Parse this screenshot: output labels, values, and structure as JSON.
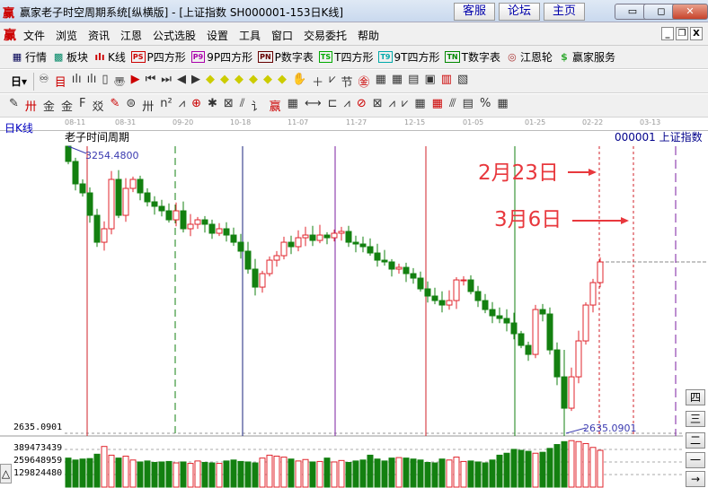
{
  "window": {
    "title": "赢家老子时空周期系统[纵横版] - [上证指数  SH000001-153日K线]",
    "logo": "赢",
    "buttons": [
      "客服",
      "论坛",
      "主页"
    ],
    "controls": [
      "minimize",
      "maximize",
      "close"
    ]
  },
  "menu": {
    "logo": "赢",
    "items": [
      "文件",
      "浏览",
      "资讯",
      "江恩",
      "公式选股",
      "设置",
      "工具",
      "窗口",
      "交易委托",
      "帮助"
    ]
  },
  "toolbar1": [
    {
      "icon": "quote-table-icon",
      "glyph": "▦",
      "label": "行情"
    },
    {
      "icon": "sector-icon",
      "glyph": "▩",
      "label": "板块"
    },
    {
      "icon": "kline-icon",
      "glyph": "ılı",
      "label": "K线"
    },
    {
      "icon": "ps-icon",
      "glyph": "PS",
      "label": "P四方形"
    },
    {
      "icon": "p9-icon",
      "glyph": "P9",
      "label": "9P四方形"
    },
    {
      "icon": "pn-icon",
      "glyph": "PN",
      "label": "P数字表"
    },
    {
      "icon": "ts-icon",
      "glyph": "TS",
      "label": "T四方形"
    },
    {
      "icon": "t9-icon",
      "glyph": "T9",
      "label": "9T四方形"
    },
    {
      "icon": "tn-icon",
      "glyph": "TN",
      "label": "T数字表"
    },
    {
      "icon": "gann-wheel-icon",
      "glyph": "◎",
      "label": "江恩轮"
    },
    {
      "icon": "dollar-icon",
      "glyph": "$",
      "label": "赢家服务"
    }
  ],
  "toolbar2_first": "日",
  "chart": {
    "period_label": "日K线",
    "indicator_title": "老子时间周期",
    "symbol": "000001  上证指数",
    "high_label": "3254.4800",
    "low_label": "2635.0901",
    "axis_low": "2635.0901",
    "vol_labels": [
      "389473439",
      "259648959",
      "129824480"
    ],
    "dates": [
      "08-11",
      "08-31",
      "09-20",
      "10-18",
      "11-07",
      "11-27",
      "12-15",
      "01-05",
      "01-25",
      "02-22",
      "03-13"
    ],
    "annotations": [
      "2月23日",
      "3月6日"
    ],
    "annotation_color": "#e8383d",
    "up_color": "#e0242c",
    "down_color": "#138010",
    "side_buttons": [
      "四",
      "三",
      "二",
      "一",
      "→"
    ],
    "corner_button": "△"
  },
  "chart_data": {
    "type": "candlestick",
    "ylim": [
      2635.0901,
      3254.48
    ],
    "closes": [
      3221.6,
      3173.2,
      3153.8,
      3105.4,
      3047.3,
      3076.4,
      3182.9,
      3105.4,
      3163.5,
      3182.9,
      3153.8,
      3134.5,
      3124.8,
      3115.1,
      3095.7,
      3115.1,
      3076.4,
      3086.1,
      3095.7,
      3086.1,
      3066.7,
      3076.4,
      3062.8,
      3047.3,
      3028.0,
      2989.3,
      2950.5,
      2979.6,
      3008.6,
      3018.3,
      3047.3,
      3037.7,
      3057.0,
      3062.8,
      3051.2,
      3062.8,
      3057.0,
      3066.7,
      3070.6,
      3047.3,
      3043.5,
      3037.7,
      3024.1,
      3008.6,
      3004.8,
      2989.3,
      2993.1,
      2979.6,
      2969.9,
      2946.7,
      2931.2,
      2921.5,
      2911.8,
      2921.5,
      2966.0,
      2966.0,
      2940.9,
      2921.5,
      2902.1,
      2888.6,
      2882.8,
      2873.1,
      2849.9,
      2824.7,
      2805.3,
      2902.1,
      2892.5,
      2815.0,
      2756.9,
      2689.2,
      2756.9,
      2834.4,
      2911.8,
      2960.2,
      3004.8
    ],
    "volumes_millions": [
      300,
      280,
      290,
      295,
      340,
      420,
      330,
      300,
      320,
      280,
      260,
      270,
      255,
      260,
      265,
      250,
      260,
      245,
      270,
      255,
      250,
      245,
      270,
      280,
      265,
      260,
      250,
      300,
      330,
      320,
      310,
      290,
      270,
      285,
      260,
      265,
      300,
      260,
      275,
      255,
      270,
      280,
      330,
      290,
      270,
      300,
      305,
      300,
      290,
      280,
      255,
      250,
      290,
      280,
      310,
      265,
      270,
      260,
      250,
      280,
      330,
      350,
      390,
      380,
      370,
      350,
      360,
      400,
      440,
      470,
      480,
      470,
      450,
      410,
      380
    ]
  }
}
